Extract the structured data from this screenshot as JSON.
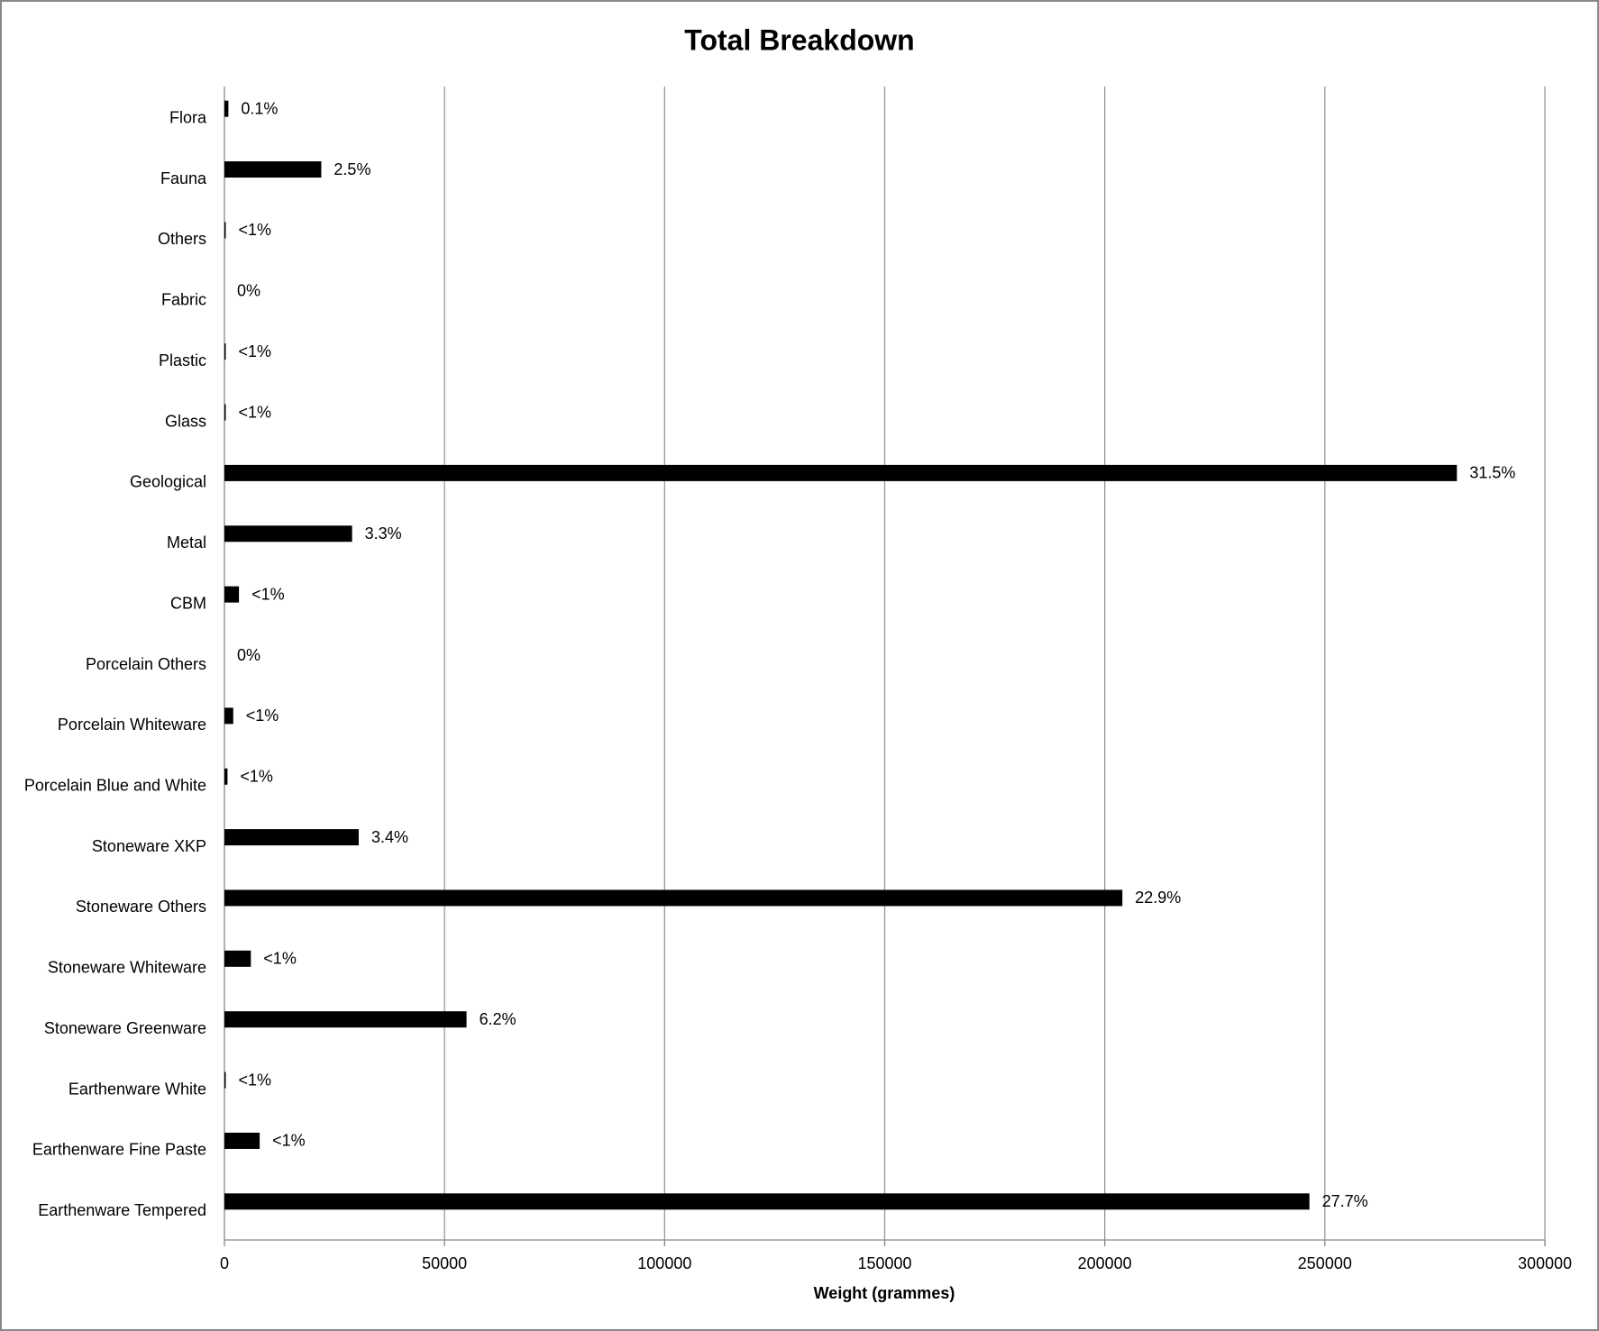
{
  "chart_data": {
    "type": "hbar",
    "title": "Total Breakdown",
    "x_label": "Weight (grammes)",
    "categories": [
      "Flora",
      "Fauna",
      "Others",
      "Fabric",
      "Plastic",
      "Glass",
      "Geological",
      "Metal",
      "CBM",
      "Porcelain Others",
      "Porcelain Whiteware",
      "Porcelain Blue and White",
      "Stoneware XKP",
      "Stoneware Others",
      "Stoneware Whiteware",
      "Stoneware Greenware",
      "Earthenware White",
      "Earthenware Fine Paste",
      "Earthenware Tempered"
    ],
    "values": [
      900,
      22000,
      300,
      0,
      300,
      300,
      280000,
      29000,
      3300,
      0,
      2000,
      700,
      30500,
      204000,
      6000,
      55000,
      300,
      8000,
      246500
    ],
    "percent_labels": [
      "0.1%",
      "2.5%",
      "<1%",
      "0%",
      "<1%",
      "<1%",
      "31.5%",
      "3.3%",
      "<1%",
      "0%",
      "<1%",
      "<1%",
      "3.4%",
      "22.9%",
      "<1%",
      "6.2%",
      "<1%",
      "<1%",
      "27.7%"
    ],
    "color": "#000000",
    "xlim": [
      0,
      300000
    ],
    "xticks": [
      0,
      50000,
      100000,
      150000,
      200000,
      250000,
      300000
    ],
    "grid": true
  }
}
